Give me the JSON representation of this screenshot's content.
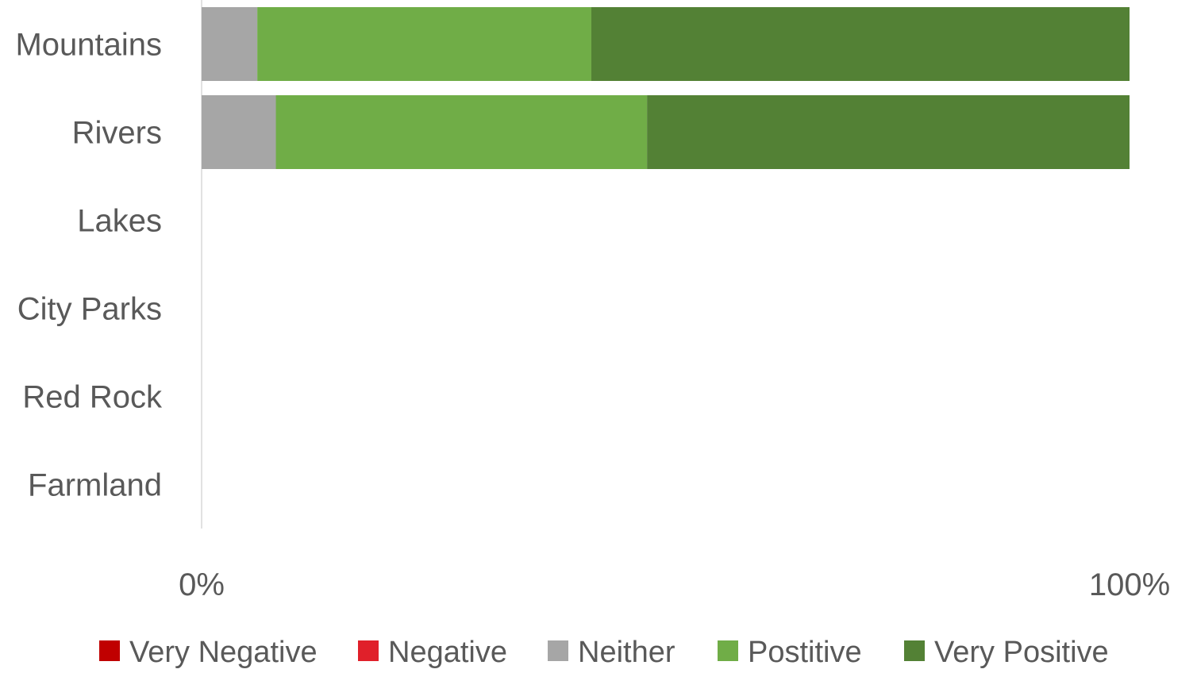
{
  "chart_data": {
    "type": "bar",
    "orientation": "horizontal",
    "stacked": true,
    "normalized": true,
    "categories": [
      "Mountains",
      "Rivers",
      "Lakes",
      "City Parks",
      "Red Rock",
      "Farmland"
    ],
    "series": [
      {
        "name": "Very Negative",
        "color": "#c00000",
        "values": [
          0,
          0,
          0,
          0,
          0,
          0
        ]
      },
      {
        "name": "Negative",
        "color": "#e0202a",
        "values": [
          0,
          0,
          0,
          0,
          0,
          0
        ]
      },
      {
        "name": "Neither",
        "color": "#a6a6a6",
        "values": [
          6,
          8,
          0,
          0,
          0,
          0
        ]
      },
      {
        "name": "Postitive",
        "color": "#70ad47",
        "values": [
          36,
          40,
          0,
          0,
          0,
          0
        ]
      },
      {
        "name": "Very Positive",
        "color": "#538135",
        "values": [
          58,
          52,
          0,
          0,
          0,
          0
        ]
      }
    ],
    "xlim": [
      0,
      100
    ],
    "x_ticks": [
      "0%",
      "100%"
    ],
    "grid": false,
    "legend_position": "bottom"
  }
}
